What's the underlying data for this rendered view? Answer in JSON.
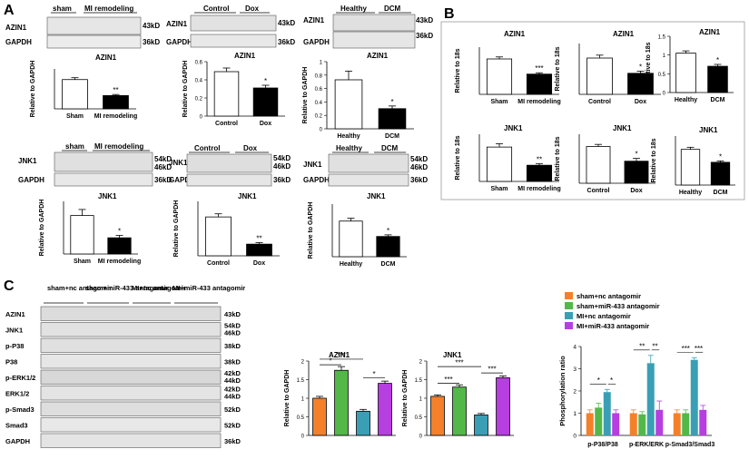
{
  "panels": {
    "A": {
      "letter": "A",
      "blots": [
        {
          "protein": "AZIN1",
          "groups": [
            "sham",
            "MI remodeling"
          ],
          "size": "43kD"
        },
        {
          "protein": "AZIN1",
          "groups": [
            "Control",
            "Dox"
          ],
          "size": "43kD"
        },
        {
          "protein": "AZIN1",
          "groups": [
            "Healthy",
            "DCM"
          ],
          "size": "43kD"
        },
        {
          "protein": "JNK1",
          "groups": [
            "sham",
            "MI remodeling"
          ],
          "size": "54kD",
          "size2": "46kD"
        },
        {
          "protein": "JNK1",
          "groups": [
            "Control",
            "Dox"
          ],
          "size": "54kD",
          "size2": "46kD"
        },
        {
          "protein": "JNK1",
          "groups": [
            "Healthy",
            "DCM"
          ],
          "size": "54kD",
          "size2": "46kD"
        }
      ],
      "gapdh": {
        "label": "GAPDH",
        "size": "36kD"
      }
    },
    "B": {
      "letter": "B"
    },
    "C": {
      "letter": "C",
      "groups": [
        "sham+nc antagomir",
        "sham+miR-433 antagomir",
        "MI+nc antagomir",
        "MI+miR-433 antagomir"
      ],
      "rows": [
        {
          "label": "AZIN1",
          "size": "43kD"
        },
        {
          "label": "JNK1",
          "size": "54kD",
          "size2": "46kD"
        },
        {
          "label": "p-P38",
          "size": "38kD"
        },
        {
          "label": "P38",
          "size": "38kD"
        },
        {
          "label": "p-ERK1/2",
          "size": "42kD",
          "size2": "44kD"
        },
        {
          "label": "ERK1/2",
          "size": "42kD",
          "size2": "44kD"
        },
        {
          "label": "p-Smad3",
          "size": "52kD"
        },
        {
          "label": "Smad3",
          "size": "52kD"
        },
        {
          "label": "GAPDH",
          "size": "36kD"
        }
      ]
    }
  },
  "colors": {
    "orange": "#f4802a",
    "green": "#52b848",
    "teal": "#3a9fb5",
    "purple": "#b73ee0",
    "white": "#ffffff",
    "black": "#000000"
  },
  "chart_data": [
    {
      "id": "a_azin1_mi",
      "type": "bar",
      "title": "AZIN1",
      "ylabel": "Relative to GAPDH",
      "categories": [
        "Sham",
        "MI remodeling"
      ],
      "values": [
        1.1,
        0.5
      ],
      "errors": [
        0.07,
        0.04
      ],
      "ylim": [
        0,
        1.5
      ],
      "sig": [
        "",
        "**"
      ]
    },
    {
      "id": "a_azin1_dox",
      "type": "bar",
      "title": "AZIN1",
      "ylabel": "Relative to GAPDH",
      "categories": [
        "Control",
        "Dox"
      ],
      "values": [
        0.49,
        0.31
      ],
      "errors": [
        0.04,
        0.03
      ],
      "ylim": [
        0,
        0.6
      ],
      "yticks": [
        0,
        0.2,
        0.4,
        0.6
      ],
      "sig": [
        "",
        "*"
      ]
    },
    {
      "id": "a_azin1_dcm",
      "type": "bar",
      "title": "AZIN1",
      "ylabel": "Relative to GAPDH",
      "categories": [
        "Healthy",
        "DCM"
      ],
      "values": [
        0.73,
        0.3
      ],
      "errors": [
        0.13,
        0.04
      ],
      "ylim": [
        0,
        1.0
      ],
      "yticks": [
        0,
        0.2,
        0.4,
        0.6,
        0.8,
        1.0
      ],
      "sig": [
        "",
        "*"
      ]
    },
    {
      "id": "b_azin1_mi",
      "type": "bar",
      "title": "AZIN1",
      "ylabel": "Relative to 18s",
      "categories": [
        "Sham",
        "MI remodeling"
      ],
      "values": [
        1.05,
        0.6
      ],
      "errors": [
        0.06,
        0.04
      ],
      "ylim": [
        0,
        1.4
      ],
      "sig": [
        "",
        "***"
      ]
    },
    {
      "id": "b_azin1_dox",
      "type": "bar",
      "title": "AZIN1",
      "ylabel": "Relative to 18s",
      "categories": [
        "Control",
        "Dox"
      ],
      "values": [
        1.0,
        0.58
      ],
      "errors": [
        0.08,
        0.06
      ],
      "ylim": [
        0,
        1.4
      ],
      "sig": [
        "",
        "*"
      ]
    },
    {
      "id": "b_azin1_dcm",
      "type": "bar",
      "title": "AZIN1",
      "ylabel": "Relative to 18s",
      "categories": [
        "Healthy",
        "DCM"
      ],
      "values": [
        1.05,
        0.7
      ],
      "errors": [
        0.06,
        0.05
      ],
      "ylim": [
        0,
        1.5
      ],
      "yticks": [
        0,
        0.5,
        1.0,
        1.5
      ],
      "sig": [
        "",
        "*"
      ]
    },
    {
      "id": "a_jnk1_mi",
      "type": "bar",
      "title": "JNK1",
      "ylabel": "Relative to GAPDH",
      "categories": [
        "Sham",
        "MI remodeling"
      ],
      "values": [
        0.95,
        0.4
      ],
      "errors": [
        0.15,
        0.06
      ],
      "ylim": [
        0,
        1.3
      ],
      "sig": [
        "",
        "*"
      ]
    },
    {
      "id": "a_jnk1_dox",
      "type": "bar",
      "title": "JNK1",
      "ylabel": "Relative to GAPDH",
      "categories": [
        "Control",
        "Dox"
      ],
      "values": [
        1.0,
        0.3
      ],
      "errors": [
        0.08,
        0.04
      ],
      "ylim": [
        0,
        1.4
      ],
      "sig": [
        "",
        "**"
      ]
    },
    {
      "id": "a_jnk1_dcm",
      "type": "bar",
      "title": "JNK1",
      "ylabel": "Relative to GAPDH",
      "categories": [
        "Healthy",
        "DCM"
      ],
      "values": [
        0.88,
        0.5
      ],
      "errors": [
        0.07,
        0.04
      ],
      "ylim": [
        0,
        1.3
      ],
      "sig": [
        "",
        "*"
      ]
    },
    {
      "id": "b_jnk1_mi",
      "type": "bar",
      "title": "JNK1",
      "ylabel": "Relative to 18s",
      "categories": [
        "Sham",
        "MI remodeling"
      ],
      "values": [
        1.02,
        0.48
      ],
      "errors": [
        0.1,
        0.05
      ],
      "ylim": [
        0,
        1.4
      ],
      "sig": [
        "",
        "**"
      ]
    },
    {
      "id": "b_jnk1_dox",
      "type": "bar",
      "title": "JNK1",
      "ylabel": "Relative to 18s",
      "categories": [
        "Control",
        "Dox"
      ],
      "values": [
        1.05,
        0.63
      ],
      "errors": [
        0.06,
        0.08
      ],
      "ylim": [
        0,
        1.4
      ],
      "sig": [
        "",
        "*"
      ]
    },
    {
      "id": "b_jnk1_dcm",
      "type": "bar",
      "title": "JNK1",
      "ylabel": "Relative to 18s",
      "categories": [
        "Healthy",
        "DCM"
      ],
      "values": [
        1.02,
        0.65
      ],
      "errors": [
        0.06,
        0.04
      ],
      "ylim": [
        0,
        1.4
      ],
      "sig": [
        "",
        "*"
      ]
    },
    {
      "id": "c_azin1",
      "type": "bar",
      "title": "AZIN1",
      "ylabel": "Relative to GAPDH",
      "categories": [
        "sham+nc antagomir",
        "sham+miR-433 antagomir",
        "MI+nc antagomir",
        "MI+miR-433 antagomir"
      ],
      "values": [
        1.0,
        1.75,
        0.65,
        1.4
      ],
      "errors": [
        0.05,
        0.1,
        0.05,
        0.06
      ],
      "ylim": [
        0,
        2.0
      ],
      "yticks": [
        0,
        0.5,
        1.0,
        1.5,
        2.0
      ],
      "brackets": [
        {
          "from": 0,
          "to": 1,
          "level": 1.9,
          "label": "*"
        },
        {
          "from": 0,
          "to": 2,
          "level": 2.05,
          "label": "***"
        },
        {
          "from": 2,
          "to": 3,
          "level": 1.55,
          "label": "*"
        }
      ]
    },
    {
      "id": "c_jnk1",
      "type": "bar",
      "title": "JNK1",
      "ylabel": "Relative to GAPDH",
      "categories": [
        "sham+nc antagomir",
        "sham+miR-433 antagomir",
        "MI+nc antagomir",
        "MI+miR-433 antagomir"
      ],
      "values": [
        1.05,
        1.3,
        0.55,
        1.55
      ],
      "errors": [
        0.04,
        0.06,
        0.04,
        0.05
      ],
      "ylim": [
        0,
        2.0
      ],
      "yticks": [
        0,
        0.5,
        1.0,
        1.5,
        2.0
      ],
      "brackets": [
        {
          "from": 0,
          "to": 1,
          "level": 1.4,
          "label": "***"
        },
        {
          "from": 0,
          "to": 2,
          "level": 1.85,
          "label": "***"
        },
        {
          "from": 2,
          "to": 3,
          "level": 1.68,
          "label": "***"
        }
      ]
    },
    {
      "id": "c_phos",
      "type": "bar",
      "ylabel": "Phosphorylation ratio",
      "categories": [
        "p-P38/P38",
        "p-ERK/ERK",
        "p-Smad3/Smad3"
      ],
      "series": [
        {
          "name": "sham+nc antagomir",
          "color": "#f4802a",
          "values": [
            1.0,
            1.0,
            1.0
          ],
          "errors": [
            0.15,
            0.15,
            0.15
          ]
        },
        {
          "name": "sham+miR-433 antagomir",
          "color": "#52b848",
          "values": [
            1.25,
            0.95,
            1.0
          ],
          "errors": [
            0.2,
            0.12,
            0.15
          ]
        },
        {
          "name": "MI+nc antagomir",
          "color": "#3a9fb5",
          "values": [
            1.95,
            3.25,
            3.4
          ],
          "errors": [
            0.12,
            0.35,
            0.1
          ]
        },
        {
          "name": "MI+miR-433 antagomir",
          "color": "#b73ee0",
          "values": [
            1.0,
            1.15,
            1.15
          ],
          "errors": [
            0.15,
            0.4,
            0.2
          ]
        }
      ],
      "ylim": [
        0,
        4
      ],
      "yticks": [
        0,
        1,
        2,
        3,
        4
      ],
      "sig_labels": [
        [
          "*",
          "*"
        ],
        [
          "**",
          "**"
        ],
        [
          "***",
          "***"
        ]
      ],
      "legend": "top-left"
    }
  ]
}
